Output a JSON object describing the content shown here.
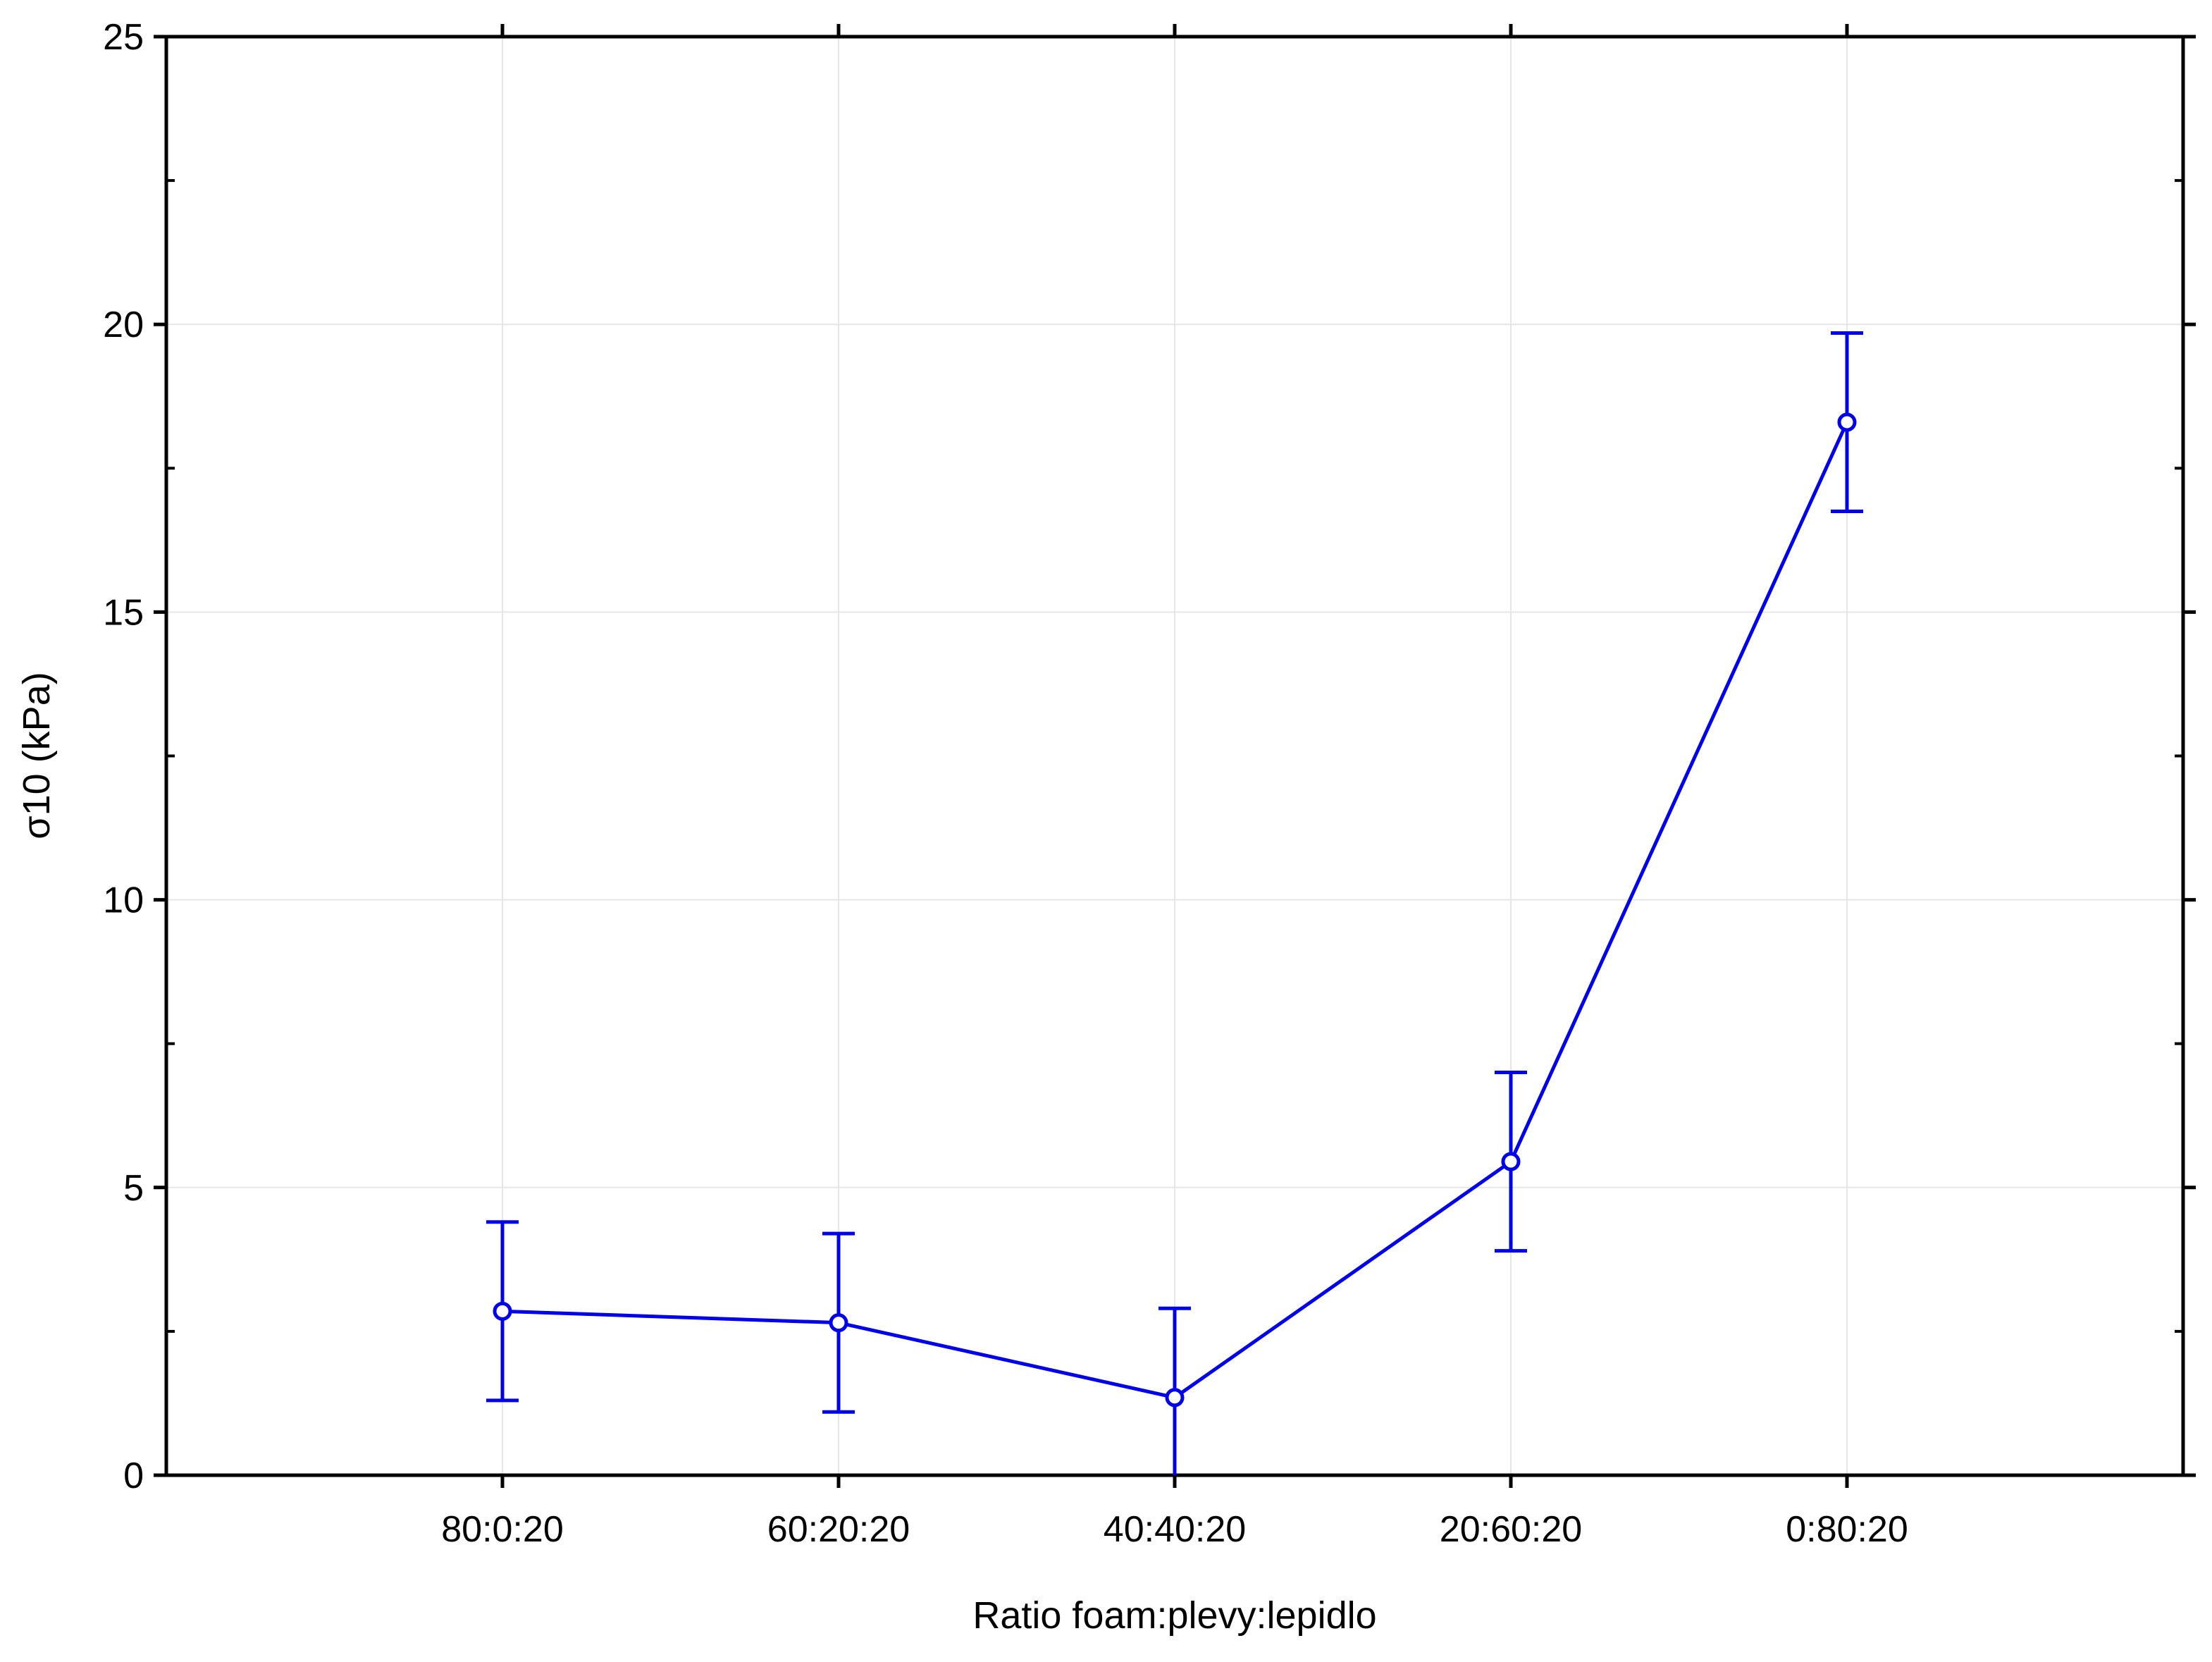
{
  "chart_data": {
    "type": "line",
    "title": "",
    "xlabel": "Ratio foam:plevy:lepidlo",
    "ylabel": "σ10 (kPa)",
    "categories": [
      "80:0:20",
      "60:20:20",
      "40:40:20",
      "20:60:20",
      "0:80:20"
    ],
    "series": [
      {
        "values": [
          2.85,
          2.65,
          1.35,
          5.45,
          18.3
        ],
        "error_low": [
          1.3,
          1.1,
          -0.2,
          3.9,
          16.75
        ],
        "error_high": [
          4.4,
          4.2,
          2.9,
          7.0,
          19.85
        ]
      }
    ],
    "ylim": [
      0,
      25
    ],
    "yticks": [
      "0",
      "5",
      "10",
      "15",
      "20",
      "25"
    ],
    "grid": true,
    "legend": "none",
    "colors": {
      "series": "#0000ee",
      "grid": "#e6e6e6",
      "axis": "#000000"
    },
    "marker": "open-circle"
  }
}
